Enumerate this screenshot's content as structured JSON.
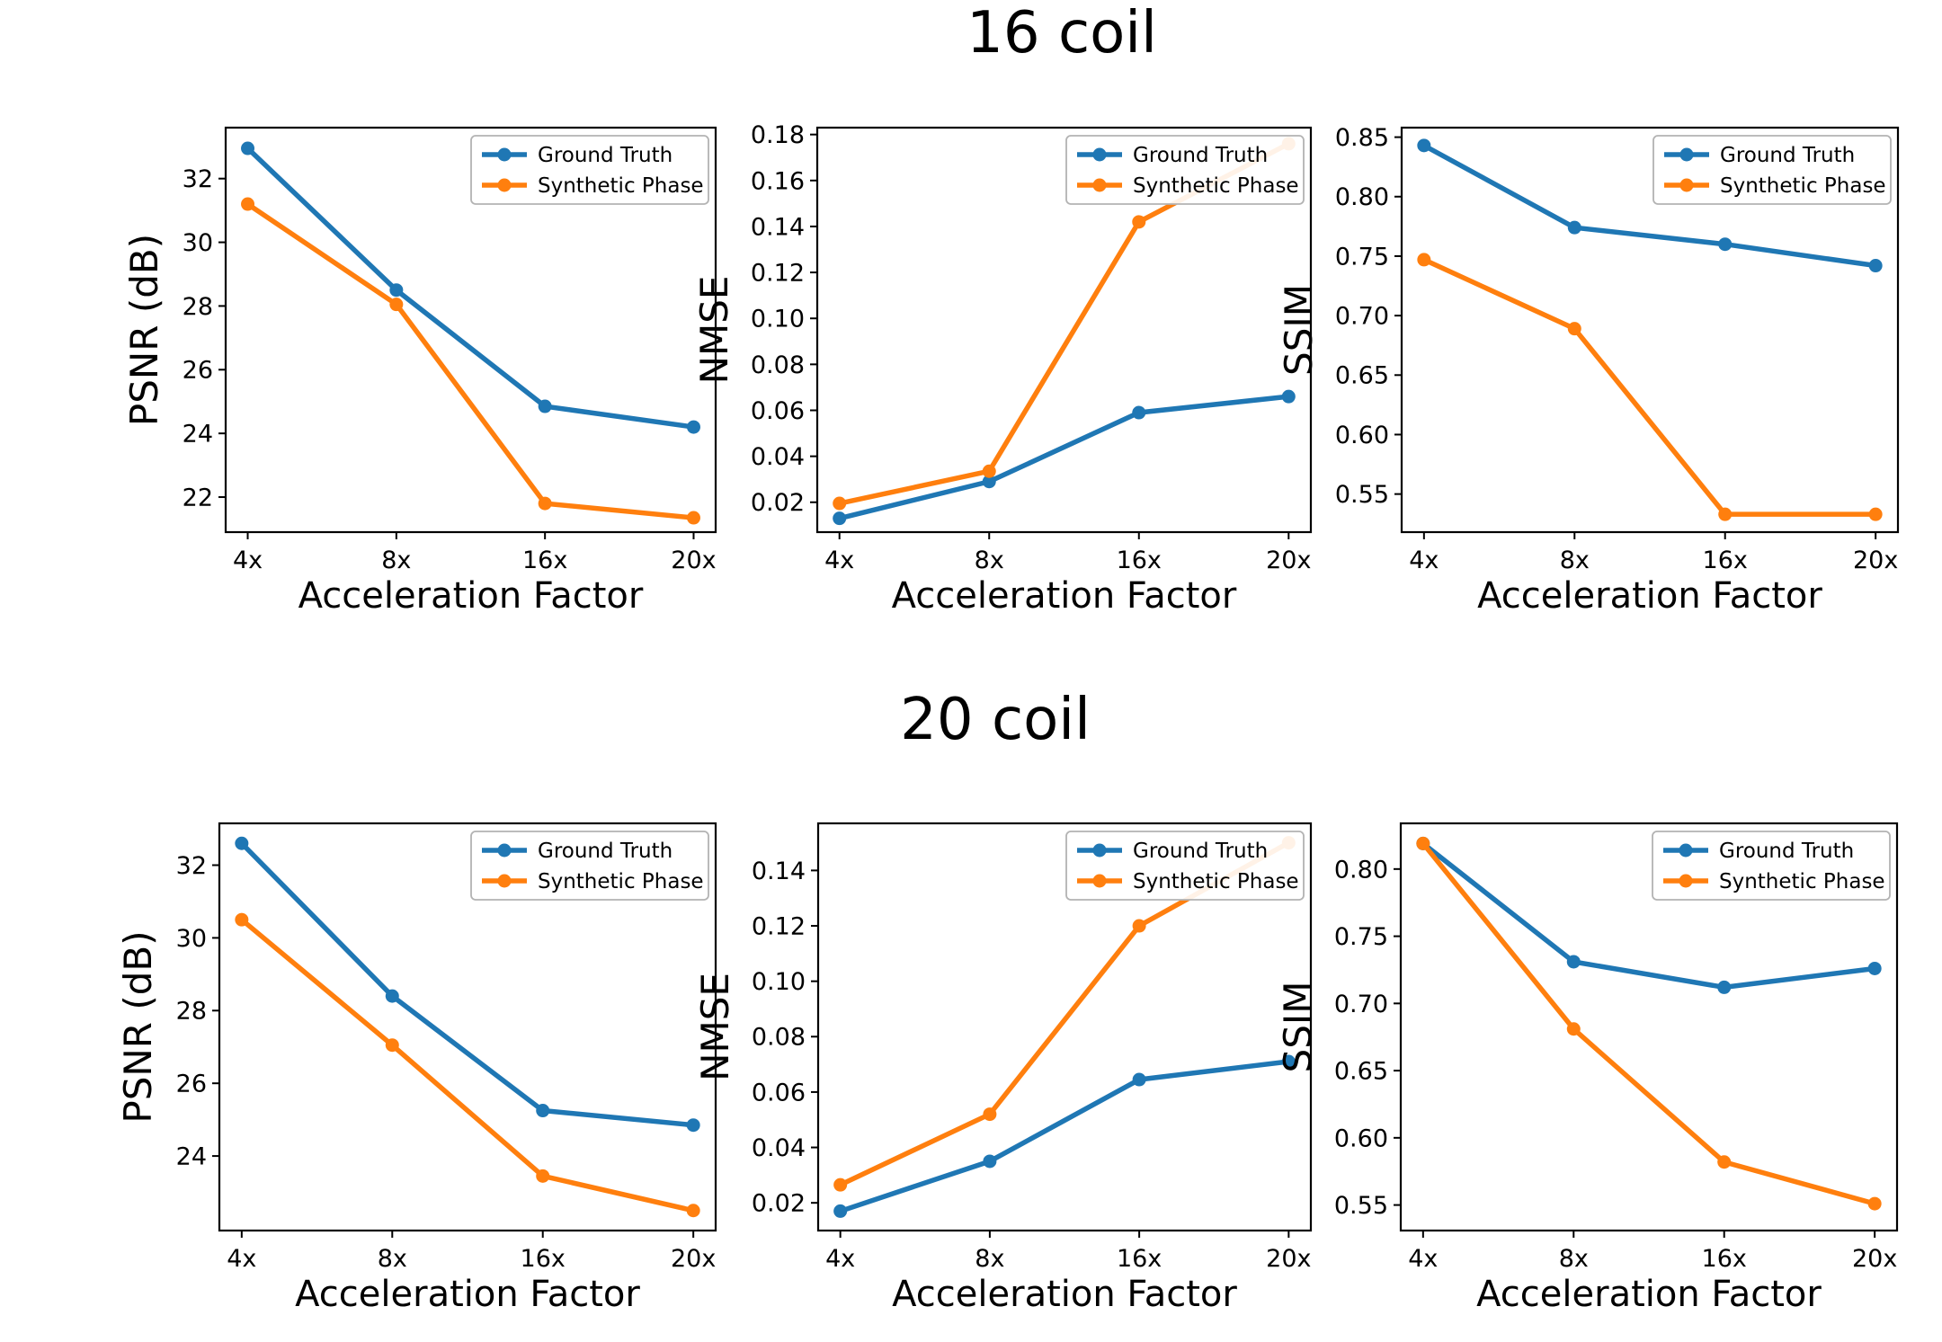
{
  "figure": {
    "section_titles": [
      "16 coil",
      "20 coil"
    ],
    "xlabel": "Acceleration Factor",
    "categories": [
      "4x",
      "8x",
      "16x",
      "20x"
    ],
    "legend": {
      "position": "upper right",
      "entries": [
        "Ground Truth",
        "Synthetic Phase"
      ]
    },
    "colors": {
      "ground_truth": "#1f77b4",
      "synthetic_phase": "#ff7f0e",
      "axis": "#000000",
      "legend_border": "#b3b3b3"
    }
  },
  "chart_data": [
    {
      "id": "psnr-16coil",
      "type": "line",
      "group": "16 coil",
      "ylabel": "PSNR (dB)",
      "xlabel": "Acceleration Factor",
      "categories": [
        "4x",
        "8x",
        "16x",
        "20x"
      ],
      "ylim": [
        20.9,
        33.6
      ],
      "yticks": [
        22,
        24,
        26,
        28,
        30,
        32
      ],
      "ytick_labels": [
        "22",
        "24",
        "26",
        "28",
        "30",
        "32"
      ],
      "grid": false,
      "legend_position": "upper right",
      "series": [
        {
          "name": "Ground Truth",
          "color": "#1f77b4",
          "values": [
            32.95,
            28.5,
            24.85,
            24.2
          ]
        },
        {
          "name": "Synthetic Phase",
          "color": "#ff7f0e",
          "values": [
            31.2,
            28.05,
            21.8,
            21.35
          ]
        }
      ]
    },
    {
      "id": "nmse-16coil",
      "type": "line",
      "group": "16 coil",
      "ylabel": "NMSE",
      "xlabel": "Acceleration Factor",
      "categories": [
        "4x",
        "8x",
        "16x",
        "20x"
      ],
      "ylim": [
        0.007,
        0.183
      ],
      "yticks": [
        0.02,
        0.04,
        0.06,
        0.08,
        0.1,
        0.12,
        0.14,
        0.16,
        0.18
      ],
      "ytick_labels": [
        "0.02",
        "0.04",
        "0.06",
        "0.08",
        "0.10",
        "0.12",
        "0.14",
        "0.16",
        "0.18"
      ],
      "grid": false,
      "legend_position": "upper left",
      "series": [
        {
          "name": "Ground Truth",
          "color": "#1f77b4",
          "values": [
            0.013,
            0.029,
            0.059,
            0.066
          ]
        },
        {
          "name": "Synthetic Phase",
          "color": "#ff7f0e",
          "values": [
            0.0195,
            0.0335,
            0.142,
            0.176
          ]
        }
      ]
    },
    {
      "id": "ssim-16coil",
      "type": "line",
      "group": "16 coil",
      "ylabel": "SSIM",
      "xlabel": "Acceleration Factor",
      "categories": [
        "4x",
        "8x",
        "16x",
        "20x"
      ],
      "ylim": [
        0.518,
        0.858
      ],
      "yticks": [
        0.55,
        0.6,
        0.65,
        0.7,
        0.75,
        0.8,
        0.85
      ],
      "ytick_labels": [
        "0.55",
        "0.60",
        "0.65",
        "0.70",
        "0.75",
        "0.80",
        "0.85"
      ],
      "grid": false,
      "legend_position": "upper right",
      "series": [
        {
          "name": "Ground Truth",
          "color": "#1f77b4",
          "values": [
            0.843,
            0.774,
            0.76,
            0.742
          ]
        },
        {
          "name": "Synthetic Phase",
          "color": "#ff7f0e",
          "values": [
            0.747,
            0.689,
            0.533,
            0.533
          ]
        }
      ]
    },
    {
      "id": "psnr-20coil",
      "type": "line",
      "group": "20 coil",
      "ylabel": "PSNR (dB)",
      "xlabel": "Acceleration Factor",
      "categories": [
        "4x",
        "8x",
        "16x",
        "20x"
      ],
      "ylim": [
        21.95,
        33.15
      ],
      "yticks": [
        24,
        26,
        28,
        30,
        32
      ],
      "ytick_labels": [
        "24",
        "26",
        "28",
        "30",
        "32"
      ],
      "grid": false,
      "legend_position": "upper right",
      "series": [
        {
          "name": "Ground Truth",
          "color": "#1f77b4",
          "values": [
            32.6,
            28.4,
            25.25,
            24.85
          ]
        },
        {
          "name": "Synthetic Phase",
          "color": "#ff7f0e",
          "values": [
            30.5,
            27.05,
            23.45,
            22.5
          ]
        }
      ]
    },
    {
      "id": "nmse-20coil",
      "type": "line",
      "group": "20 coil",
      "ylabel": "NMSE",
      "xlabel": "Acceleration Factor",
      "categories": [
        "4x",
        "8x",
        "16x",
        "20x"
      ],
      "ylim": [
        0.01,
        0.157
      ],
      "yticks": [
        0.02,
        0.04,
        0.06,
        0.08,
        0.1,
        0.12,
        0.14
      ],
      "ytick_labels": [
        "0.02",
        "0.04",
        "0.06",
        "0.08",
        "0.10",
        "0.12",
        "0.14"
      ],
      "grid": false,
      "legend_position": "upper left",
      "series": [
        {
          "name": "Ground Truth",
          "color": "#1f77b4",
          "values": [
            0.017,
            0.035,
            0.0645,
            0.071
          ]
        },
        {
          "name": "Synthetic Phase",
          "color": "#ff7f0e",
          "values": [
            0.0265,
            0.052,
            0.12,
            0.15
          ]
        }
      ]
    },
    {
      "id": "ssim-20coil",
      "type": "line",
      "group": "20 coil",
      "ylabel": "SSIM",
      "xlabel": "Acceleration Factor",
      "categories": [
        "4x",
        "8x",
        "16x",
        "20x"
      ],
      "ylim": [
        0.531,
        0.834
      ],
      "yticks": [
        0.55,
        0.6,
        0.65,
        0.7,
        0.75,
        0.8
      ],
      "ytick_labels": [
        "0.55",
        "0.60",
        "0.65",
        "0.70",
        "0.75",
        "0.80"
      ],
      "grid": false,
      "legend_position": "upper right",
      "series": [
        {
          "name": "Ground Truth",
          "color": "#1f77b4",
          "values": [
            0.819,
            0.731,
            0.712,
            0.726
          ]
        },
        {
          "name": "Synthetic Phase",
          "color": "#ff7f0e",
          "values": [
            0.819,
            0.681,
            0.582,
            0.551
          ]
        }
      ]
    }
  ]
}
